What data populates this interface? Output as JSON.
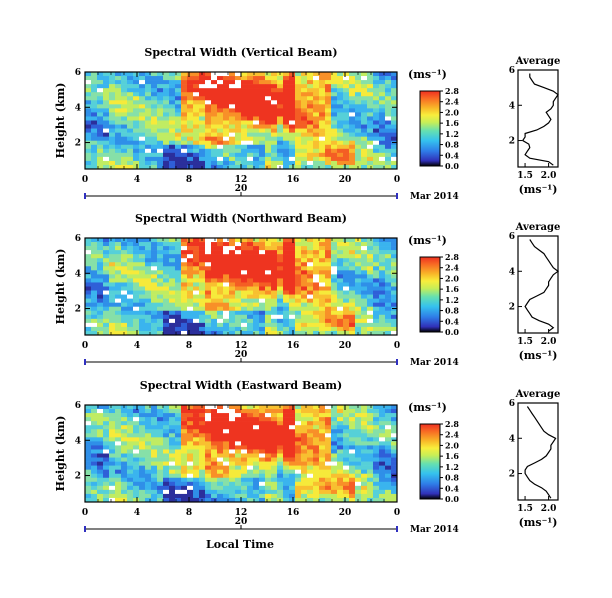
{
  "figure": {
    "xlabel_bottom": "Local Time",
    "cbar_unit": "(ms⁻¹)"
  },
  "chart_data": [
    {
      "type": "heatmap",
      "title": "Spectral Width (Vertical Beam)",
      "ylabel": "Height (km)",
      "yticks": [
        "2",
        "4",
        "6"
      ],
      "ylim": [
        0.5,
        6
      ],
      "xlabel": "Local Time",
      "xticks": [
        "0",
        "4",
        "8",
        "12",
        "16",
        "20",
        "0"
      ],
      "xlim": [
        0,
        24
      ],
      "date_tick": "20",
      "date_label": "Mar 2014",
      "colorbar": {
        "unit": "(ms⁻¹)",
        "range": [
          0,
          2.8
        ],
        "ticks": [
          "0.0",
          "0.4",
          "0.8",
          "1.2",
          "1.6",
          "2.0",
          "2.4",
          "2.8"
        ]
      },
      "profile": {
        "title": "Average",
        "xlabel": "(ms⁻¹)",
        "xticks": [
          "1.5",
          "2.0"
        ],
        "xlim": [
          1.35,
          2.2
        ],
        "yticks": [
          "2",
          "4",
          "6"
        ],
        "ylim": [
          0.5,
          6
        ],
        "heights": [
          0.6,
          0.8,
          1.0,
          1.2,
          1.4,
          1.6,
          1.8,
          2.0,
          2.2,
          2.4,
          2.6,
          2.8,
          3.0,
          3.2,
          3.4,
          3.6,
          3.8,
          4.0,
          4.2,
          4.4,
          4.6,
          4.8,
          5.0,
          5.2,
          5.4,
          5.6,
          5.8
        ],
        "values": [
          2.1,
          2.0,
          1.6,
          1.5,
          1.55,
          1.6,
          1.58,
          1.45,
          1.5,
          1.5,
          1.75,
          1.9,
          2.0,
          2.05,
          2.0,
          1.95,
          2.05,
          2.1,
          2.1,
          2.15,
          2.2,
          2.1,
          1.9,
          1.7,
          1.65,
          1.6,
          1.6
        ]
      }
    },
    {
      "type": "heatmap",
      "title": "Spectral Width (Northward Beam)",
      "ylabel": "Height (km)",
      "yticks": [
        "2",
        "4",
        "6"
      ],
      "ylim": [
        0.5,
        6
      ],
      "xlabel": "Local Time",
      "xticks": [
        "0",
        "4",
        "8",
        "12",
        "16",
        "20",
        "0"
      ],
      "xlim": [
        0,
        24
      ],
      "date_tick": "20",
      "date_label": "Mar 2014",
      "colorbar": {
        "unit": "(ms⁻¹)",
        "range": [
          0,
          2.8
        ],
        "ticks": [
          "0.0",
          "0.4",
          "0.8",
          "1.2",
          "1.6",
          "2.0",
          "2.4",
          "2.8"
        ]
      },
      "profile": {
        "title": "Average",
        "xlabel": "(ms⁻¹)",
        "xticks": [
          "1.5",
          "2.0"
        ],
        "xlim": [
          1.35,
          2.2
        ],
        "yticks": [
          "2",
          "4",
          "6"
        ],
        "ylim": [
          0.5,
          6
        ],
        "heights": [
          0.6,
          0.8,
          1.0,
          1.2,
          1.4,
          1.6,
          1.8,
          2.0,
          2.2,
          2.4,
          2.6,
          2.8,
          3.0,
          3.2,
          3.4,
          3.6,
          3.8,
          4.0,
          4.2,
          4.4,
          4.6,
          4.8,
          5.0,
          5.2,
          5.4,
          5.6,
          5.8
        ],
        "values": [
          2.0,
          2.1,
          2.0,
          1.8,
          1.65,
          1.6,
          1.55,
          1.5,
          1.55,
          1.6,
          1.75,
          1.9,
          1.95,
          2.0,
          2.0,
          2.05,
          2.1,
          2.2,
          2.1,
          2.05,
          2.0,
          1.95,
          1.9,
          1.8,
          1.7,
          1.65,
          1.6
        ]
      }
    },
    {
      "type": "heatmap",
      "title": "Spectral Width (Eastward Beam)",
      "ylabel": "Height (km)",
      "yticks": [
        "2",
        "4",
        "6"
      ],
      "ylim": [
        0.5,
        6
      ],
      "xlabel": "Local Time",
      "xticks": [
        "0",
        "4",
        "8",
        "12",
        "16",
        "20",
        "0"
      ],
      "xlim": [
        0,
        24
      ],
      "date_tick": "20",
      "date_label": "Mar 2014",
      "colorbar": {
        "unit": "(ms⁻¹)",
        "range": [
          0,
          2.8
        ],
        "ticks": [
          "0.0",
          "0.4",
          "0.8",
          "1.2",
          "1.6",
          "2.0",
          "2.4",
          "2.8"
        ]
      },
      "profile": {
        "title": "Average",
        "xlabel": "(ms⁻¹)",
        "xticks": [
          "1.5",
          "2.0"
        ],
        "xlim": [
          1.35,
          2.2
        ],
        "yticks": [
          "2",
          "4",
          "6"
        ],
        "ylim": [
          0.5,
          6
        ],
        "heights": [
          0.6,
          0.8,
          1.0,
          1.2,
          1.4,
          1.6,
          1.8,
          2.0,
          2.2,
          2.4,
          2.6,
          2.8,
          3.0,
          3.2,
          3.4,
          3.6,
          3.8,
          4.0,
          4.2,
          4.4,
          4.6,
          4.8,
          5.0,
          5.2,
          5.4,
          5.6,
          5.8
        ],
        "values": [
          2.05,
          2.0,
          1.95,
          1.85,
          1.7,
          1.6,
          1.55,
          1.5,
          1.5,
          1.55,
          1.7,
          1.85,
          1.95,
          2.0,
          2.05,
          2.05,
          2.1,
          2.15,
          2.0,
          1.9,
          1.85,
          1.8,
          1.75,
          1.7,
          1.65,
          1.6,
          1.55
        ]
      }
    }
  ]
}
